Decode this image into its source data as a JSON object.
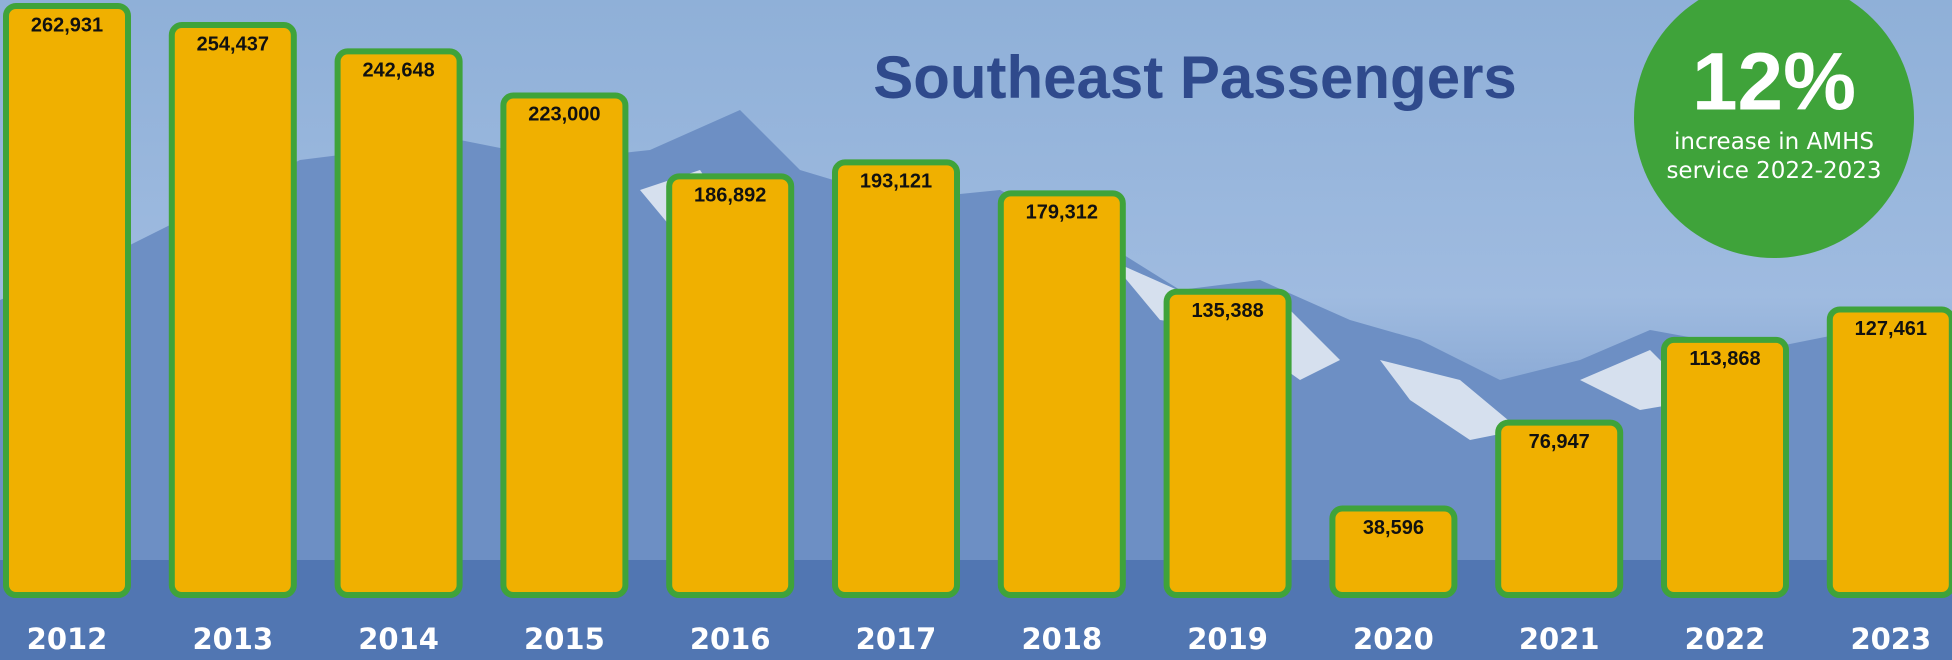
{
  "chart_data": {
    "type": "bar",
    "title": "Southeast Passengers",
    "categories": [
      "2012",
      "2013",
      "2014",
      "2015",
      "2016",
      "2017",
      "2018",
      "2019",
      "2020",
      "2021",
      "2022",
      "2023"
    ],
    "values": [
      262931,
      254437,
      242648,
      223000,
      186892,
      193121,
      179312,
      135388,
      38596,
      76947,
      113868,
      127461
    ],
    "value_labels": [
      "262,931",
      "254,437",
      "242,648",
      "223,000",
      "186,892",
      "193,121",
      "179,312",
      "135,388",
      "38,596",
      "76,947",
      "113,868",
      "127,461"
    ],
    "color": "#f0b000",
    "edge_color": "#3fa33a",
    "callout": {
      "headline": "12%",
      "text": "increase in AMHS service 2022-2023",
      "color": "#3fa33a"
    }
  }
}
